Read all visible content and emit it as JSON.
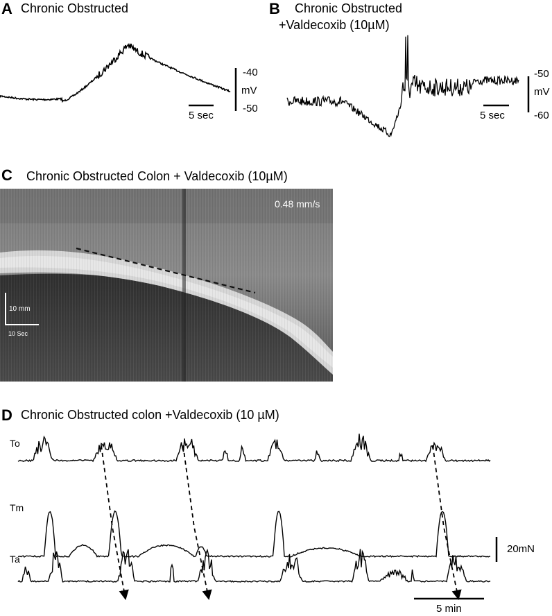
{
  "panel_a": {
    "label": "A",
    "title": "Chronic Obstructed",
    "scale_top": "-40",
    "scale_unit": "mV",
    "scale_bottom": "-50",
    "time_scale": "5 sec"
  },
  "panel_b": {
    "label": "B",
    "title_line1": "Chronic Obstructed",
    "title_line2": "+Valdecoxib (10µM)",
    "scale_top": "-50",
    "scale_unit": "mV",
    "scale_bottom": "-60",
    "time_scale": "5 sec"
  },
  "panel_c": {
    "label": "C",
    "title": "Chronic Obstructed Colon + Valdecoxib (10µM)",
    "velocity": "0.48 mm/s",
    "distance_scale": "10 mm",
    "time_scale": "10 Sec"
  },
  "panel_d": {
    "label": "D",
    "title": "Chronic Obstructed colon +Valdecoxib (10 µM)",
    "traces": [
      "To",
      "Tm",
      "Ta"
    ],
    "force_scale": "20mN",
    "time_scale": "5 min"
  },
  "colors": {
    "trace": "#000000",
    "kymo_dark": "#3a3a3a",
    "kymo_mid": "#6e6e6e",
    "kymo_band": "#d8d8d8"
  }
}
